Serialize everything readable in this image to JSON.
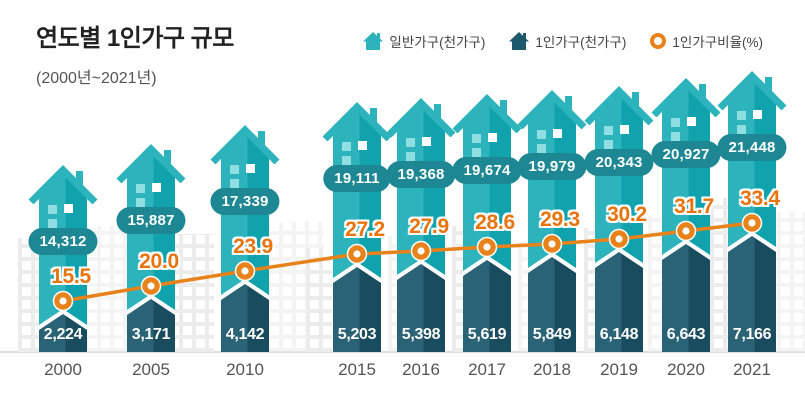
{
  "title": "연도별 1인가구 규모",
  "subtitle": "(2000년~2021년)",
  "legend": {
    "general": "일반가구(천가구)",
    "single": "1인가구(천가구)",
    "ratio": "1인가구비율(%)"
  },
  "colors": {
    "teal": "#2db3bc",
    "teal_right": "#10a3ae",
    "navy": "#2a6375",
    "navy_right": "#194c5e",
    "navy_legend": "#1c5a6b",
    "pill": "#1d8894",
    "orange": "#e8821a",
    "pct_text": "#e8740e",
    "window_light": "#8fdfe2",
    "window_white": "#ffffff"
  },
  "chart_data": {
    "type": "bar",
    "title": "연도별 1인가구 규모",
    "subtitle": "(2000년~2021년)",
    "categories": [
      "2000",
      "2005",
      "2010",
      "2015",
      "2016",
      "2017",
      "2018",
      "2019",
      "2020",
      "2021"
    ],
    "series": [
      {
        "name": "일반가구(천가구)",
        "type": "bar",
        "values": [
          14312,
          15887,
          17339,
          19111,
          19368,
          19674,
          19979,
          20343,
          20927,
          21448
        ]
      },
      {
        "name": "1인가구(천가구)",
        "type": "bar",
        "values": [
          2224,
          3171,
          4142,
          5203,
          5398,
          5619,
          5849,
          6148,
          6643,
          7166
        ]
      },
      {
        "name": "1인가구비율(%)",
        "type": "line",
        "values": [
          15.5,
          20.0,
          23.9,
          27.2,
          27.9,
          28.6,
          29.3,
          30.2,
          31.7,
          33.4
        ]
      }
    ],
    "legend_position": "top-right",
    "grid": false,
    "xlabel": "",
    "ylabel": ""
  }
}
